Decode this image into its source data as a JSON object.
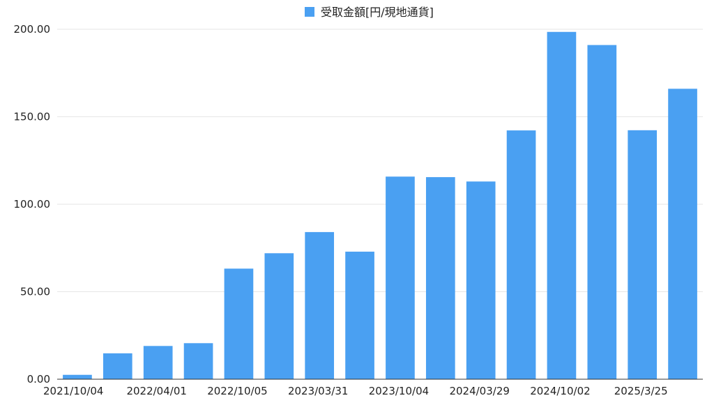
{
  "legend": {
    "label": "受取金額[円/現地通貨]",
    "position": "top-center"
  },
  "chart_data": {
    "type": "bar",
    "title": "",
    "xlabel": "",
    "ylabel": "",
    "ylim": [
      0,
      200
    ],
    "yticks": [
      "0.00",
      "50.00",
      "100.00",
      "150.00",
      "200.00"
    ],
    "grid": true,
    "legend_position": "top-center",
    "color": "#4aa0f2",
    "categories": [
      "2021/10/04",
      "",
      "2022/04/01",
      "",
      "2022/10/05",
      "",
      "2023/03/31",
      "",
      "2023/10/04",
      "",
      "2024/03/29",
      "",
      "2024/10/02",
      "",
      "2025/3/25",
      ""
    ],
    "x_tick_labels": [
      "2021/10/04",
      "2022/04/01",
      "2022/10/05",
      "2023/03/31",
      "2023/10/04",
      "2024/03/29",
      "2024/10/02",
      "2025/3/25"
    ],
    "series": [
      {
        "name": "受取金額[円/現地通貨]",
        "values": [
          2.5,
          14.8,
          19.0,
          20.6,
          63.2,
          72.0,
          84.1,
          72.9,
          115.8,
          115.5,
          113.0,
          142.2,
          198.5,
          191.0,
          142.3,
          166.0
        ]
      }
    ]
  }
}
